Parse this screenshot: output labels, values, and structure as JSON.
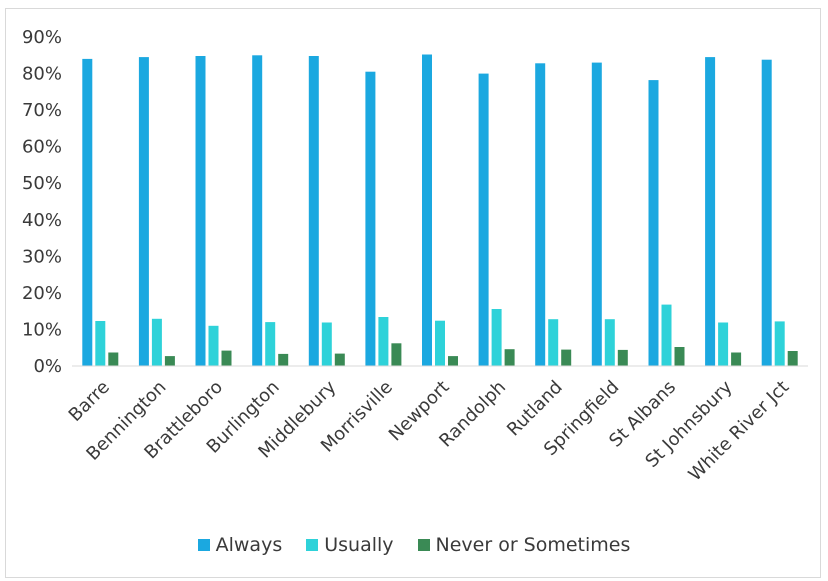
{
  "chart_data": {
    "type": "bar",
    "title": "",
    "xlabel": "",
    "ylabel": "",
    "ylim": [
      0,
      90
    ],
    "yticks": [
      "0%",
      "10%",
      "20%",
      "30%",
      "40%",
      "50%",
      "60%",
      "70%",
      "80%",
      "90%"
    ],
    "y_unit": "percent",
    "grid": false,
    "legend_position": "bottom",
    "categories": [
      "Barre",
      "Bennington",
      "Brattleboro",
      "Burlington",
      "Middlebury",
      "Morrisville",
      "Newport",
      "Randolph",
      "Rutland",
      "Springfield",
      "St Albans",
      "St Johnsbury",
      "White River Jct"
    ],
    "series": [
      {
        "name": "Always",
        "color": "#1ba8e0",
        "values": [
          84,
          84.5,
          84.8,
          85,
          84.8,
          80.5,
          85.2,
          80,
          82.8,
          83,
          78.2,
          84.5,
          83.8
        ]
      },
      {
        "name": "Usually",
        "color": "#2ed2d9",
        "values": [
          12.3,
          12.9,
          11,
          12,
          11.9,
          13.4,
          12.4,
          15.6,
          12.8,
          12.8,
          16.8,
          11.9,
          12.2
        ]
      },
      {
        "name": "Never or Sometimes",
        "color": "#3a8a55",
        "values": [
          3.7,
          2.7,
          4.2,
          3.3,
          3.4,
          6.2,
          2.7,
          4.6,
          4.5,
          4.4,
          5.2,
          3.7,
          4.1
        ]
      }
    ]
  }
}
